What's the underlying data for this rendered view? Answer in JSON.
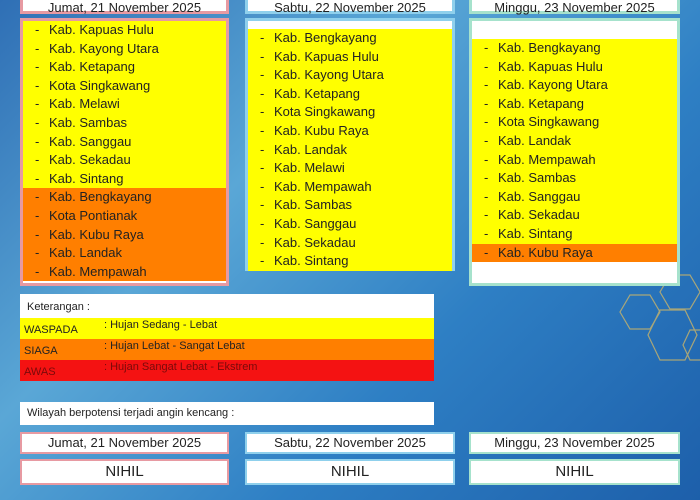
{
  "days": [
    {
      "date": "Jumat, 21 November 2025",
      "waspada": [
        "Kab. Kapuas Hulu",
        "Kab. Kayong Utara",
        "Kab. Ketapang",
        "Kota Singkawang",
        "Kab. Melawi",
        "Kab. Sambas",
        "Kab. Sanggau",
        "Kab. Sekadau",
        "Kab. Sintang"
      ],
      "siaga": [
        "Kab. Bengkayang",
        "Kota Pontianak",
        "Kab. Kubu Raya",
        "Kab. Landak",
        "Kab. Mempawah"
      ]
    },
    {
      "date": "Sabtu, 22 November 2025",
      "waspada": [
        "Kab. Bengkayang",
        "Kab. Kapuas Hulu",
        "Kab. Kayong Utara",
        "Kab. Ketapang",
        "Kota Singkawang",
        "Kab. Kubu Raya",
        "Kab. Landak",
        "Kab. Melawi",
        "Kab. Mempawah",
        "Kab. Sambas",
        "Kab. Sanggau",
        "Kab. Sekadau",
        "Kab. Sintang"
      ],
      "siaga": []
    },
    {
      "date": "Minggu, 23 November 2025",
      "waspada": [
        "Kab. Bengkayang",
        "Kab. Kapuas Hulu",
        "Kab. Kayong Utara",
        "Kab. Ketapang",
        "Kota Singkawang",
        "Kab. Landak",
        "Kab. Mempawah",
        "Kab. Sambas",
        "Kab. Sanggau",
        "Kab. Sekadau",
        "Kab. Sintang"
      ],
      "siaga": [
        "Kab. Kubu Raya"
      ]
    }
  ],
  "bullet": "-",
  "legend": {
    "title": "Keterangan :",
    "items": [
      {
        "key": "WASPADA",
        "desc": ": Hujan Sedang - Lebat",
        "color": "#ffff00"
      },
      {
        "key": "SIAGA",
        "desc": ": Hujan Lebat - Sangat Lebat",
        "color": "#ff7f00"
      },
      {
        "key": "AWAS",
        "desc": ": Hujan Sangat Lebat - Ekstrem",
        "color": "#f41212"
      }
    ]
  },
  "wind": {
    "title": "Wilayah berpotensi terjadi angin kencang :",
    "days": [
      {
        "date": "Jumat, 21 November 2025",
        "value": "NIHIL"
      },
      {
        "date": "Sabtu, 22 November 2025",
        "value": "NIHIL"
      },
      {
        "date": "Minggu, 23 November 2025",
        "value": "NIHIL"
      }
    ]
  }
}
